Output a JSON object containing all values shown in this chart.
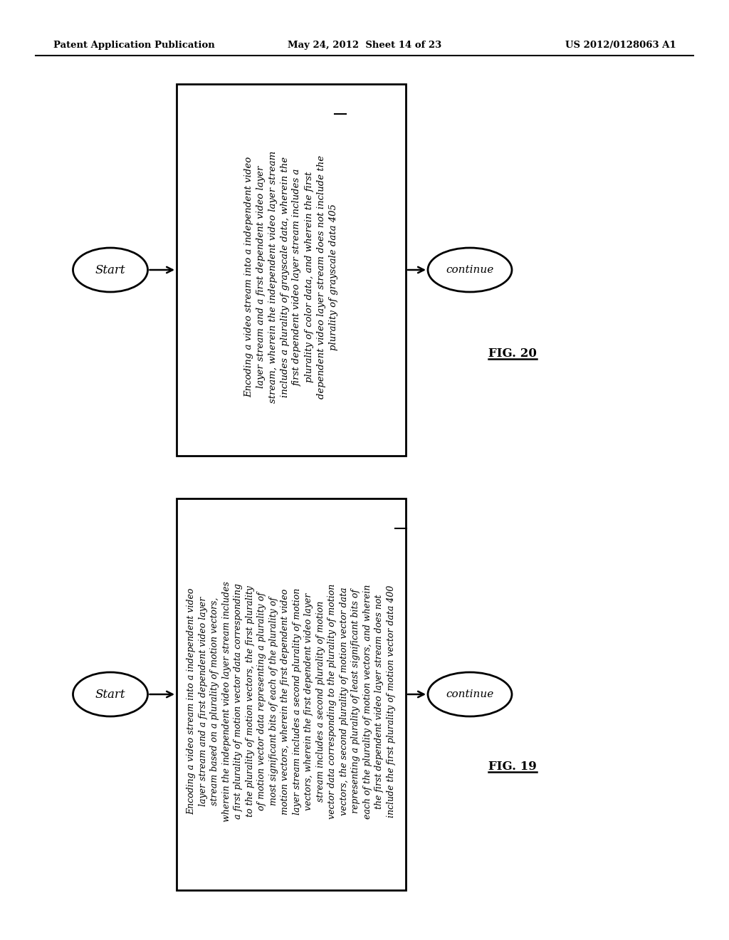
{
  "bg_color": "#ffffff",
  "header_left": "Patent Application Publication",
  "header_center": "May 24, 2012  Sheet 14 of 23",
  "header_right": "US 2012/0128063 A1",
  "fig20": {
    "label": "FIG. 20",
    "start_label": "Start",
    "continue_label": "continue",
    "box_text_lines": [
      "Encoding a video stream into a independent video",
      "layer stream and a first dependent video layer",
      "stream, wherein the independent video layer stream",
      "includes a plurality of grayscale data, wherein the",
      "first dependent video layer stream includes a",
      "plurality of color data, and wherein the first",
      "dependent video layer stream does not include the",
      "plurality of grayscale data 405"
    ],
    "underline_ref": "405"
  },
  "fig19": {
    "label": "FIG. 19",
    "start_label": "Start",
    "continue_label": "continue",
    "box_text_lines": [
      "Encoding a video stream into a independent video",
      "layer stream and a first dependent video layer",
      "stream based on a plurality of motion vectors,",
      "wherein the independent video layer stream includes",
      "a first plurality of motion vector data corresponding",
      "to the plurality of motion vectors, the first plurality",
      "of motion vector data representing a plurality of",
      "most significant bits of each of the plurality of",
      "motion vectors, wherein the first dependent video",
      "layer stream includes a second plurality of motion",
      "vectors, wherein the first dependent video layer",
      "stream includes a second plurality of motion",
      "vector data corresponding to the plurality of motion",
      "vectors, the second plurality of motion vector data",
      "representing a plurality of least significant bits of",
      "each of the plurality of motion vectors, and wherein",
      "the first dependent video layer stream does not",
      "include the first plurality of motion vector data 400"
    ],
    "underline_ref": "400"
  }
}
